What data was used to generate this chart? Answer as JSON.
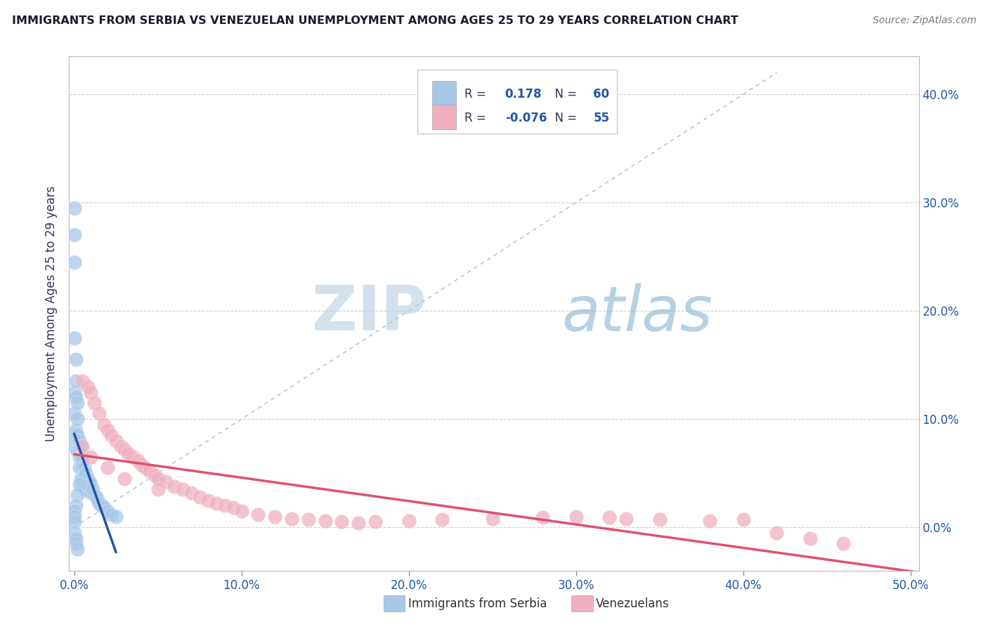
{
  "title": "IMMIGRANTS FROM SERBIA VS VENEZUELAN UNEMPLOYMENT AMONG AGES 25 TO 29 YEARS CORRELATION CHART",
  "source": "Source: ZipAtlas.com",
  "ylabel": "Unemployment Among Ages 25 to 29 years",
  "yticks": [
    "0.0%",
    "10.0%",
    "20.0%",
    "30.0%",
    "40.0%"
  ],
  "ytick_vals": [
    0.0,
    0.1,
    0.2,
    0.3,
    0.4
  ],
  "xtick_vals": [
    0.0,
    0.1,
    0.2,
    0.3,
    0.4,
    0.5
  ],
  "xtick_labels": [
    "0.0%",
    "10.0%",
    "20.0%",
    "30.0%",
    "40.0%",
    "50.0%"
  ],
  "xlim": [
    -0.003,
    0.505
  ],
  "ylim": [
    -0.04,
    0.435
  ],
  "serbia_R": 0.178,
  "serbia_N": 60,
  "venezuela_R": -0.076,
  "venezuela_N": 55,
  "serbia_color": "#a8c8e8",
  "serbia_line_color": "#2255aa",
  "venezuela_color": "#f0b0c0",
  "venezuela_line_color": "#e05070",
  "diag_line_color": "#8ab0d8",
  "label_color": "#2255aa",
  "title_color": "#1a1a2e",
  "watermark_color": "#c5d8ec",
  "serbia_x": [
    0.0,
    0.0,
    0.0,
    0.0,
    0.0,
    0.0,
    0.0,
    0.0,
    0.001,
    0.001,
    0.001,
    0.001,
    0.002,
    0.002,
    0.002,
    0.002,
    0.003,
    0.003,
    0.003,
    0.003,
    0.004,
    0.004,
    0.004,
    0.004,
    0.005,
    0.005,
    0.005,
    0.005,
    0.006,
    0.006,
    0.006,
    0.007,
    0.007,
    0.007,
    0.008,
    0.008,
    0.009,
    0.009,
    0.01,
    0.01,
    0.011,
    0.012,
    0.013,
    0.014,
    0.015,
    0.016,
    0.018,
    0.02,
    0.022,
    0.025,
    0.003,
    0.002,
    0.001,
    0.0,
    0.0,
    0.0,
    0.0,
    0.001,
    0.001,
    0.002
  ],
  "serbia_y": [
    0.295,
    0.27,
    0.245,
    0.175,
    0.125,
    0.105,
    0.085,
    0.075,
    0.155,
    0.135,
    0.12,
    0.09,
    0.115,
    0.1,
    0.085,
    0.07,
    0.08,
    0.07,
    0.065,
    0.055,
    0.075,
    0.065,
    0.055,
    0.045,
    0.065,
    0.055,
    0.045,
    0.04,
    0.055,
    0.048,
    0.038,
    0.05,
    0.04,
    0.035,
    0.045,
    0.038,
    0.042,
    0.035,
    0.04,
    0.032,
    0.035,
    0.03,
    0.028,
    0.025,
    0.022,
    0.02,
    0.018,
    0.015,
    0.012,
    0.01,
    0.04,
    0.03,
    0.02,
    0.015,
    0.01,
    0.005,
    -0.005,
    -0.01,
    -0.015,
    -0.02
  ],
  "venezuela_x": [
    0.005,
    0.008,
    0.01,
    0.012,
    0.015,
    0.018,
    0.02,
    0.022,
    0.025,
    0.028,
    0.03,
    0.032,
    0.035,
    0.038,
    0.04,
    0.042,
    0.045,
    0.048,
    0.05,
    0.055,
    0.06,
    0.065,
    0.07,
    0.075,
    0.08,
    0.085,
    0.09,
    0.095,
    0.1,
    0.11,
    0.12,
    0.13,
    0.14,
    0.15,
    0.16,
    0.17,
    0.18,
    0.2,
    0.22,
    0.25,
    0.28,
    0.3,
    0.32,
    0.33,
    0.35,
    0.38,
    0.4,
    0.42,
    0.44,
    0.46,
    0.005,
    0.01,
    0.02,
    0.03,
    0.05
  ],
  "venezuela_y": [
    0.135,
    0.13,
    0.125,
    0.115,
    0.105,
    0.095,
    0.09,
    0.085,
    0.08,
    0.075,
    0.072,
    0.068,
    0.065,
    0.062,
    0.058,
    0.055,
    0.052,
    0.048,
    0.045,
    0.042,
    0.038,
    0.035,
    0.032,
    0.028,
    0.025,
    0.022,
    0.02,
    0.018,
    0.015,
    0.012,
    0.01,
    0.008,
    0.007,
    0.006,
    0.005,
    0.004,
    0.005,
    0.006,
    0.007,
    0.008,
    0.009,
    0.01,
    0.009,
    0.008,
    0.007,
    0.006,
    0.007,
    -0.005,
    -0.01,
    -0.015,
    0.075,
    0.065,
    0.055,
    0.045,
    0.035
  ]
}
